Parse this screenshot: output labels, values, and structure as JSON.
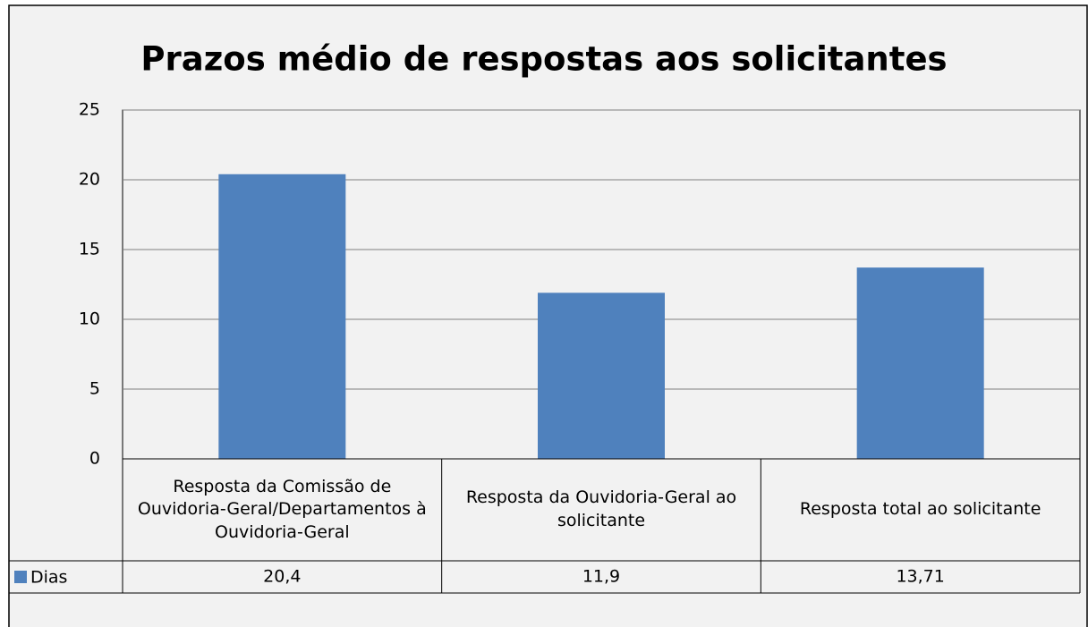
{
  "chart_data": {
    "type": "bar",
    "title": "Prazos médio de respostas aos solicitantes",
    "categories": [
      "Resposta da Comissão de Ouvidoria-Geral/Departamentos à Ouvidoria-Geral",
      "Resposta da Ouvidoria-Geral ao solicitante",
      "Resposta total ao solicitante"
    ],
    "series": [
      {
        "name": "Dias",
        "color": "#4f81bd",
        "values": [
          20.4,
          11.9,
          13.71
        ],
        "value_labels": [
          "20,4",
          "11,9",
          "13,71"
        ]
      }
    ],
    "ylim": [
      0,
      25
    ],
    "yticks": [
      0,
      5,
      10,
      15,
      20,
      25
    ],
    "grid": true,
    "data_table": true
  }
}
